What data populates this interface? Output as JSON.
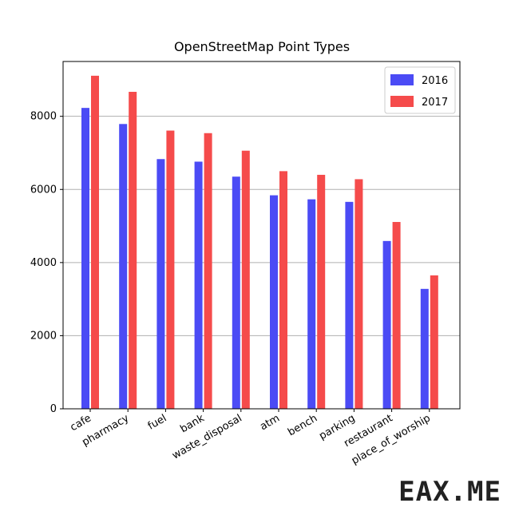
{
  "chart_data": {
    "type": "bar",
    "title": "OpenStreetMap Point Types",
    "xlabel": "",
    "ylabel": "",
    "categories": [
      "cafe",
      "pharmacy",
      "fuel",
      "bank",
      "waste_disposal",
      "atm",
      "bench",
      "parking",
      "restaurant",
      "place_of_worship"
    ],
    "series": [
      {
        "name": "2016",
        "color": "#4b4bf5",
        "values": [
          8230,
          7790,
          6830,
          6760,
          6350,
          5840,
          5730,
          5660,
          4590,
          3280
        ]
      },
      {
        "name": "2017",
        "color": "#f54b4b",
        "values": [
          9110,
          8670,
          7610,
          7540,
          7060,
          6500,
          6400,
          6280,
          5110,
          3650
        ]
      }
    ],
    "ylim": [
      0,
      9500
    ],
    "yticks": [
      0,
      2000,
      4000,
      6000,
      8000
    ],
    "grid": "horizontal",
    "legend_position": "top-right"
  },
  "watermark": "EAX.ME"
}
